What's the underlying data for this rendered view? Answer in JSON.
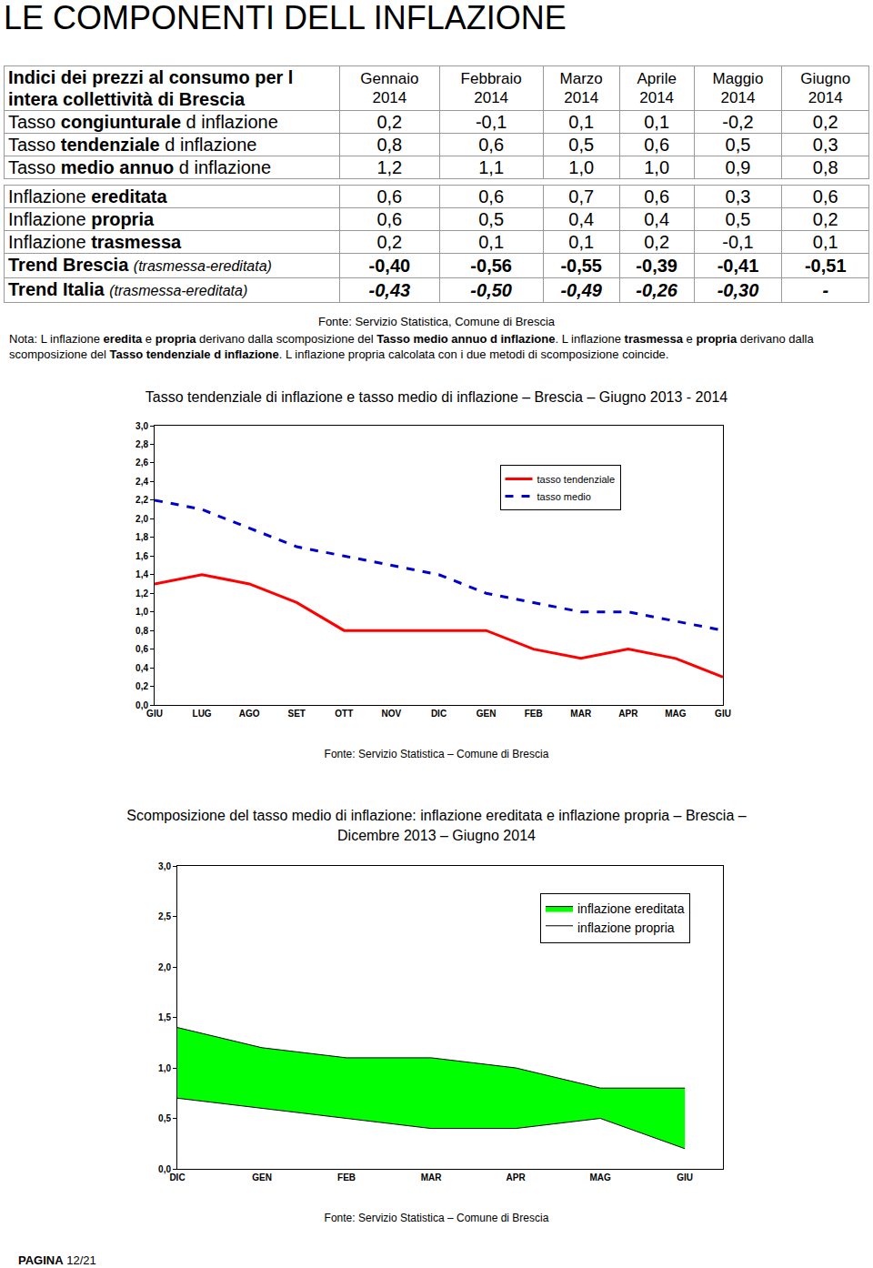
{
  "page_title": "LE COMPONENTI DELL INFLAZIONE",
  "table": {
    "header": {
      "title": "Indici dei prezzi al consumo per l intera collettività di Brescia",
      "columns": [
        [
          "Gennaio",
          "2014"
        ],
        [
          "Febbraio",
          "2014"
        ],
        [
          "Marzo",
          "2014"
        ],
        [
          "Aprile",
          "2014"
        ],
        [
          "Maggio",
          "2014"
        ],
        [
          "Giugno",
          "2014"
        ]
      ]
    },
    "sections": [
      [
        {
          "label": [
            {
              "text": "Tasso "
            },
            {
              "text": "congiunturale",
              "strong": true
            },
            {
              "text": " d inflazione"
            }
          ],
          "values": [
            "0,2",
            "-0,1",
            "0,1",
            "0,1",
            "-0,2",
            "0,2"
          ]
        },
        {
          "label": [
            {
              "text": "Tasso "
            },
            {
              "text": "tendenziale",
              "strong": true
            },
            {
              "text": " d inflazione"
            }
          ],
          "values": [
            "0,8",
            "0,6",
            "0,5",
            "0,6",
            "0,5",
            "0,3"
          ]
        },
        {
          "label": [
            {
              "text": "Tasso "
            },
            {
              "text": "medio annuo",
              "strong": true
            },
            {
              "text": " d inflazione"
            }
          ],
          "values": [
            "1,2",
            "1,1",
            "1,0",
            "1,0",
            "0,9",
            "0,8"
          ]
        }
      ],
      [
        {
          "label": [
            {
              "text": "Inflazione "
            },
            {
              "text": "ereditata",
              "strong": true
            }
          ],
          "values": [
            "0,6",
            "0,6",
            "0,7",
            "0,6",
            "0,3",
            "0,6"
          ]
        },
        {
          "label": [
            {
              "text": "Inflazione "
            },
            {
              "text": "propria",
              "strong": true
            }
          ],
          "values": [
            "0,6",
            "0,5",
            "0,4",
            "0,4",
            "0,5",
            "0,2"
          ]
        },
        {
          "label": [
            {
              "text": "Inflazione "
            },
            {
              "text": "trasmessa",
              "strong": true
            }
          ],
          "values": [
            "0,2",
            "0,1",
            "0,1",
            "0,2",
            "-0,1",
            "0,1"
          ]
        },
        {
          "label": [
            {
              "text": "Trend Brescia ",
              "strong": true
            },
            {
              "text": "(trasmessa-ereditata)",
              "italic": true
            }
          ],
          "values": [
            "-0,40",
            "-0,56",
            "-0,55",
            "-0,39",
            "-0,41",
            "-0,51"
          ],
          "style": "bold"
        },
        {
          "label": [
            {
              "text": "Trend Italia ",
              "strong": true
            },
            {
              "text": "(trasmessa-ereditata)",
              "italic": true
            }
          ],
          "values": [
            "-0,43",
            "-0,50",
            "-0,49",
            "-0,26",
            "-0,30",
            "-"
          ],
          "style": "bold-italic"
        }
      ]
    ],
    "source": "Fonte: Servizio Statistica, Comune di Brescia",
    "note": [
      {
        "text": "Nota: L inflazione "
      },
      {
        "text": "eredita",
        "strong": true
      },
      {
        "text": " e "
      },
      {
        "text": "propria",
        "strong": true
      },
      {
        "text": " derivano dalla scomposizione del "
      },
      {
        "text": "Tasso medio annuo d inflazione",
        "strong": true
      },
      {
        "text": ". L inflazione "
      },
      {
        "text": "trasmessa",
        "strong": true
      },
      {
        "text": " e "
      },
      {
        "text": "propria",
        "strong": true
      },
      {
        "text": " derivano dalla scomposizione del "
      },
      {
        "text": "Tasso tendenziale d inflazione",
        "strong": true
      },
      {
        "text": ". L inflazione propria calcolata con i due metodi di scomposizione coincide."
      }
    ]
  },
  "chart_data": [
    {
      "type": "line",
      "title": [
        "Tasso tendenziale di inflazione e tasso medio di inflazione – Brescia – Giugno 2013 - 2014"
      ],
      "categories": [
        "GIU",
        "LUG",
        "AGO",
        "SET",
        "OTT",
        "NOV",
        "DIC",
        "GEN",
        "FEB",
        "MAR",
        "APR",
        "MAG",
        "GIU"
      ],
      "series": [
        {
          "name": "tasso tendenziale",
          "color": "#ff0000",
          "line_style": "solid",
          "values": [
            1.3,
            1.4,
            1.3,
            1.1,
            0.8,
            0.8,
            0.8,
            0.8,
            0.6,
            0.5,
            0.6,
            0.5,
            0.3
          ]
        },
        {
          "name": "tasso medio",
          "color": "#0000cc",
          "line_style": "dash",
          "values": [
            2.2,
            2.1,
            1.9,
            1.7,
            1.6,
            1.5,
            1.4,
            1.2,
            1.1,
            1.0,
            1.0,
            0.9,
            0.8
          ]
        }
      ],
      "ylim": [
        0,
        3
      ],
      "yticks": [
        {
          "value": 0,
          "label": "0,0"
        },
        {
          "value": 0.2,
          "label": "0,2"
        },
        {
          "value": 0.4,
          "label": "0,4"
        },
        {
          "value": 0.6,
          "label": "0,6"
        },
        {
          "value": 0.8,
          "label": "0,8"
        },
        {
          "value": 1,
          "label": "1,0"
        },
        {
          "value": 1.2,
          "label": "1,2"
        },
        {
          "value": 1.4,
          "label": "1,4"
        },
        {
          "value": 1.6,
          "label": "1,6"
        },
        {
          "value": 1.8,
          "label": "1,8"
        },
        {
          "value": 2,
          "label": "2,0"
        },
        {
          "value": 2.2,
          "label": "2,2"
        },
        {
          "value": 2.4,
          "label": "2,4"
        },
        {
          "value": 2.6,
          "label": "2,6"
        },
        {
          "value": 2.8,
          "label": "2,8"
        },
        {
          "value": 3,
          "label": "3,0"
        }
      ],
      "grid": false,
      "legend": "upper right",
      "source": "Fonte: Servizio Statistica – Comune di Brescia"
    },
    {
      "type": "area",
      "stacked": true,
      "title": [
        "Scomposizione del tasso medio di inflazione: inflazione ereditata e inflazione propria – Brescia –",
        "Dicembre 2013 – Giugno 2014"
      ],
      "categories": [
        "DIC",
        "GEN",
        "FEB",
        "MAR",
        "APR",
        "MAG",
        "GIU"
      ],
      "series": [
        {
          "name": "inflazione propria",
          "color": "#ffffff",
          "values": [
            0.7,
            0.6,
            0.5,
            0.4,
            0.4,
            0.5,
            0.2
          ]
        },
        {
          "name": "inflazione ereditata",
          "color": "#00ff00",
          "values": [
            0.7,
            0.6,
            0.6,
            0.7,
            0.6,
            0.3,
            0.6
          ]
        }
      ],
      "ylim": [
        0,
        3
      ],
      "yticks": [
        {
          "value": 0,
          "label": "0,0"
        },
        {
          "value": 0.5,
          "label": "0,5"
        },
        {
          "value": 1,
          "label": "1,0"
        },
        {
          "value": 1.5,
          "label": "1,5"
        },
        {
          "value": 2,
          "label": "2,0"
        },
        {
          "value": 2.5,
          "label": "2,5"
        },
        {
          "value": 3,
          "label": "3,0"
        }
      ],
      "grid": false,
      "legend": "upper right",
      "source": "Fonte: Servizio Statistica – Comune di Brescia"
    }
  ],
  "footer": {
    "label": "PAGINA",
    "page": "12/21"
  }
}
